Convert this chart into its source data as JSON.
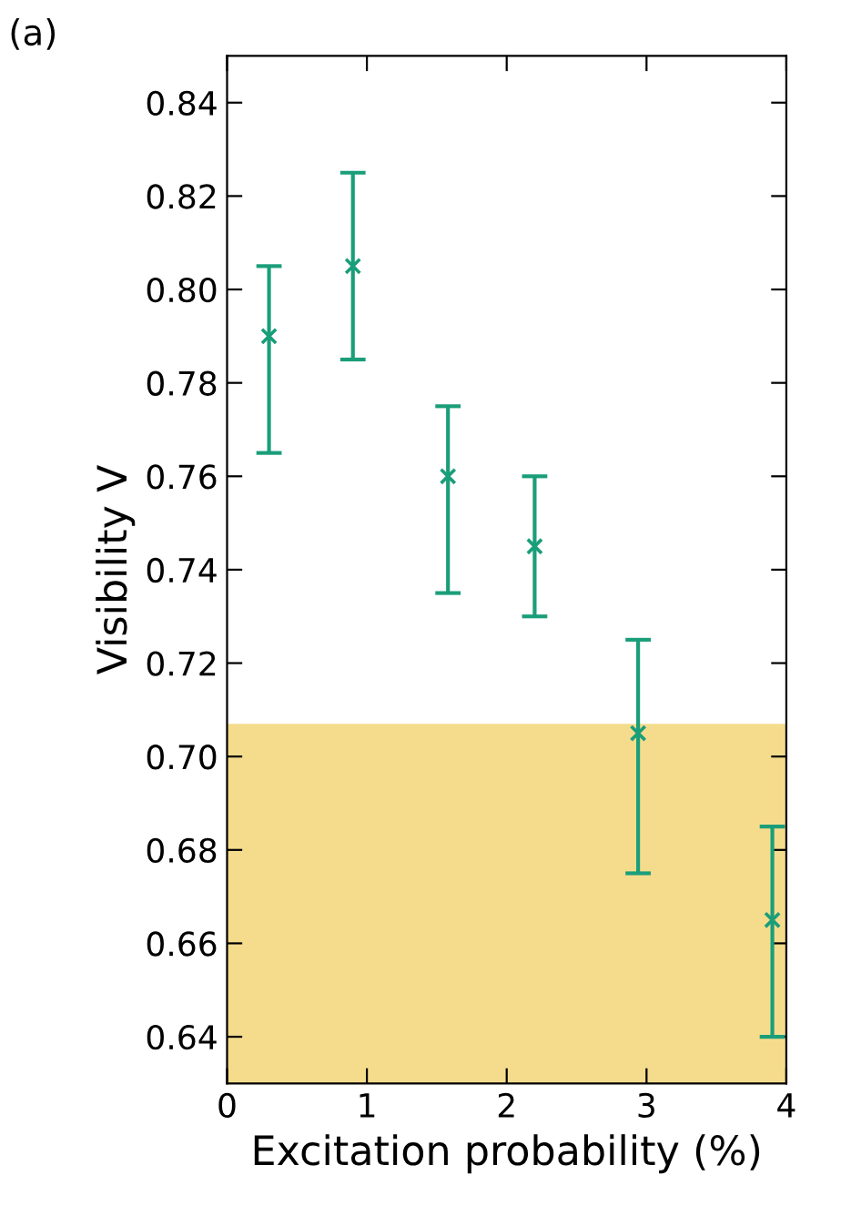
{
  "chart_data": {
    "type": "scatter",
    "xlabel": "Excitation probability (%)",
    "ylabel": "Visibility V",
    "annotations": [
      "(a)"
    ],
    "x": [
      0.3,
      0.9,
      1.58,
      2.2,
      2.94,
      3.9
    ],
    "series": [
      {
        "color": "#1a9e7a",
        "values": [
          0.79,
          0.805,
          0.76,
          0.745,
          0.705,
          0.665
        ],
        "errors": [
          [
            0.765,
            0.805
          ],
          [
            0.785,
            0.825
          ],
          [
            0.735,
            0.775
          ],
          [
            0.73,
            0.76
          ],
          [
            0.675,
            0.725
          ],
          [
            0.64,
            0.685
          ]
        ]
      }
    ],
    "bands": [
      {
        "axis": "y",
        "from": 0.63,
        "to": 0.707,
        "color": "#f5dc8c"
      }
    ],
    "marker": "cross",
    "xlim": [
      0,
      4
    ],
    "ylim": [
      0.63,
      0.85
    ],
    "xticks": [
      0,
      1,
      2,
      3,
      4
    ],
    "yticks": [
      {
        "value": 0.64,
        "label": "0.64"
      },
      {
        "value": 0.66,
        "label": "0.66"
      },
      {
        "value": 0.68,
        "label": "0.68"
      },
      {
        "value": 0.7,
        "label": "0.70"
      },
      {
        "value": 0.72,
        "label": "0.72"
      },
      {
        "value": 0.74,
        "label": "0.74"
      },
      {
        "value": 0.76,
        "label": "0.76"
      },
      {
        "value": 0.78,
        "label": "0.78"
      },
      {
        "value": 0.8,
        "label": "0.80"
      },
      {
        "value": 0.82,
        "label": "0.82"
      },
      {
        "value": 0.84,
        "label": "0.84"
      }
    ],
    "grid": false,
    "legend": false
  }
}
